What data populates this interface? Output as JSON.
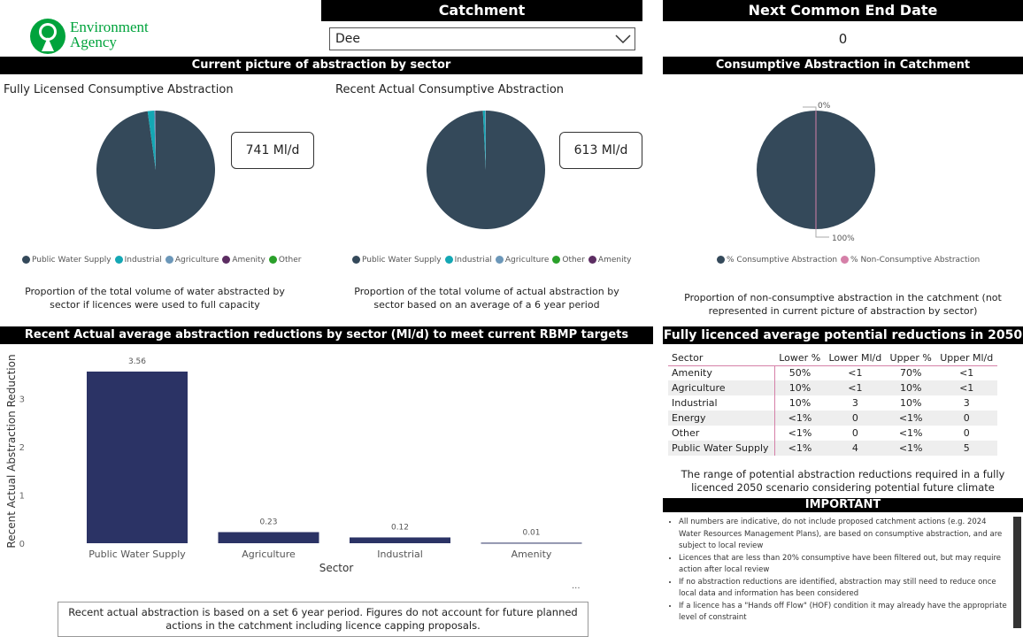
{
  "logo": {
    "line1": "Environment",
    "line2": "Agency"
  },
  "catchment": {
    "title": "Catchment",
    "selected": "Dee"
  },
  "end_date": {
    "title": "Next Common End Date",
    "value": "0"
  },
  "current": {
    "title": "Current picture of abstraction by sector",
    "fully": {
      "title": "Fully Licensed Consumptive Abstraction",
      "total": "741 Ml/d",
      "caption": "Proportion of the total volume of water abstracted by sector if licences were used to full capacity",
      "legend": [
        "Public Water Supply",
        "Industrial",
        "Agriculture",
        "Amenity",
        "Other"
      ]
    },
    "recent": {
      "title": "Recent Actual Consumptive Abstraction",
      "total": "613 Ml/d",
      "caption": "Proportion of the total volume of actual abstraction by sector based on an average of a 6 year period",
      "legend": [
        "Public Water Supply",
        "Industrial",
        "Agriculture",
        "Other",
        "Amenity"
      ]
    }
  },
  "consumptive": {
    "title": "Consumptive Abstraction in Catchment",
    "label_top": "0%",
    "label_bottom": "100%",
    "legend": [
      "% Consumptive Abstraction",
      "% Non-Consumptive Abstraction"
    ],
    "caption": "Proportion of non-consumptive abstraction in the catchment (not represented in current picture of abstraction by sector)"
  },
  "colors": {
    "pws": "#34495a",
    "industrial": "#14a7b4",
    "agriculture": "#6b97b9",
    "amenity": "#5c2d62",
    "other": "#2aa02a",
    "bar": "#2b3365",
    "nonconsumptive": "#d580a8"
  },
  "chart_data": {
    "type": "bar",
    "title": "Recent Actual average abstraction reductions by sector (Ml/d) to meet current RBMP targets",
    "categories": [
      "Public Water Supply",
      "Agriculture",
      "Industrial",
      "Amenity"
    ],
    "values": [
      3.56,
      0.23,
      0.12,
      0.01
    ],
    "data_labels": [
      "3.56",
      "0.23",
      "0.12",
      "0.01"
    ],
    "xlabel": "Sector",
    "ylabel": "Recent Actual Abstraction Reduction",
    "yticks": [
      "0",
      "1",
      "2",
      "3"
    ],
    "ylim": [
      0,
      3.8
    ]
  },
  "bar_note": "Recent actual abstraction is based on a set 6 year period. Figures do not account for future planned actions in the catchment including licence capping proposals.",
  "more": "...",
  "reductions": {
    "title": "Fully licenced average potential reductions in 2050",
    "headers": [
      "Sector",
      "Lower %",
      "Lower Ml/d",
      "Upper %",
      "Upper Ml/d"
    ],
    "rows": [
      [
        "Amenity",
        "50%",
        "<1",
        "70%",
        "<1"
      ],
      [
        "Agriculture",
        "10%",
        "<1",
        "10%",
        "<1"
      ],
      [
        "Industrial",
        "10%",
        "3",
        "10%",
        "3"
      ],
      [
        "Energy",
        "<1%",
        "0",
        "<1%",
        "0"
      ],
      [
        "Other",
        "<1%",
        "0",
        "<1%",
        "0"
      ],
      [
        "Public Water Supply",
        "<1%",
        "4",
        "<1%",
        "5"
      ]
    ],
    "caption": "The range of potential abstraction reductions required in a fully licenced 2050 scenario considering potential future climate"
  },
  "important": {
    "title": "IMPORTANT",
    "items": [
      "All numbers are indicative, do not include proposed catchment actions (e.g. 2024 Water Resources Management Plans), are based on consumptive abstraction, and are subject to local review",
      "Licences that are less than 20% consumptive have been filtered out, but may require action after local review",
      "If no abstraction reductions are identified, abstraction may still need to reduce once local data and information has been considered",
      "If a licence has a \"Hands off Flow\" (HOF) condition it may already have the appropriate level of constraint"
    ]
  }
}
